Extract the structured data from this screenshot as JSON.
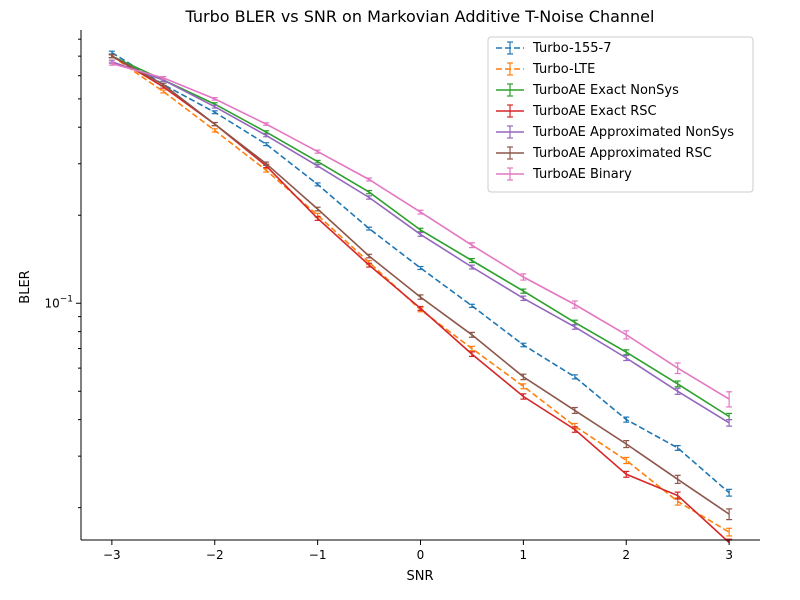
{
  "chart_data": {
    "type": "line",
    "title": "Turbo BLER vs SNR on Markovian Additive T-Noise Channel",
    "xlabel": "SNR",
    "ylabel": "BLER",
    "yscale": "log",
    "xlim": [
      -3.3,
      3.3
    ],
    "ylim": [
      0.0155,
      0.86
    ],
    "x_ticks": [
      -3,
      -2,
      -1,
      0,
      1,
      2,
      3
    ],
    "x_tick_labels": [
      "−3",
      "−2",
      "−1",
      "0",
      "1",
      "2",
      "3"
    ],
    "y_major_tick": 0.1,
    "y_major_tick_label_base": "10",
    "y_major_tick_label_exp": "−1",
    "legend_position": "top-right",
    "grid": false,
    "x": [
      -3,
      -2.5,
      -2,
      -1.5,
      -1,
      -0.5,
      0,
      0.5,
      1,
      1.5,
      2,
      2.5,
      3
    ],
    "series": [
      {
        "name": "Turbo-155-7",
        "color": "#1f77b4",
        "dashed": true,
        "values": [
          0.72,
          0.56,
          0.45,
          0.35,
          0.255,
          0.18,
          0.132,
          0.098,
          0.072,
          0.056,
          0.04,
          0.032,
          0.0225
        ],
        "errors": [
          0.008,
          0.006,
          0.005,
          0.004,
          0.003,
          0.002,
          0.0015,
          0.0012,
          0.001,
          0.0009,
          0.0008,
          0.0006,
          0.0006
        ]
      },
      {
        "name": "Turbo-LTE",
        "color": "#ff7f0e",
        "dashed": true,
        "values": [
          0.7,
          0.53,
          0.39,
          0.285,
          0.2,
          0.138,
          0.095,
          0.07,
          0.052,
          0.038,
          0.029,
          0.021,
          0.0165
        ],
        "errors": [
          0.008,
          0.006,
          0.005,
          0.004,
          0.003,
          0.002,
          0.0015,
          0.0012,
          0.001,
          0.0008,
          0.0007,
          0.0006,
          0.0005
        ]
      },
      {
        "name": "TurboAE Exact NonSys",
        "color": "#2ca02c",
        "dashed": false,
        "values": [
          0.7,
          0.58,
          0.48,
          0.385,
          0.305,
          0.24,
          0.178,
          0.14,
          0.11,
          0.086,
          0.068,
          0.053,
          0.041
        ],
        "errors": [
          0.008,
          0.006,
          0.005,
          0.004,
          0.003,
          0.003,
          0.0025,
          0.0022,
          0.0018,
          0.0015,
          0.0013,
          0.0012,
          0.001
        ]
      },
      {
        "name": "TurboAE Exact RSC",
        "color": "#d62728",
        "dashed": false,
        "values": [
          0.7,
          0.55,
          0.41,
          0.295,
          0.195,
          0.135,
          0.096,
          0.067,
          0.048,
          0.037,
          0.026,
          0.022,
          0.0152
        ],
        "errors": [
          0.008,
          0.006,
          0.005,
          0.004,
          0.003,
          0.002,
          0.0015,
          0.0012,
          0.001,
          0.0008,
          0.0006,
          0.0006,
          0.0004
        ]
      },
      {
        "name": "TurboAE Approximated NonSys",
        "color": "#9467bd",
        "dashed": false,
        "values": [
          0.67,
          0.58,
          0.47,
          0.375,
          0.295,
          0.23,
          0.172,
          0.133,
          0.104,
          0.083,
          0.065,
          0.05,
          0.039
        ],
        "errors": [
          0.008,
          0.006,
          0.005,
          0.004,
          0.003,
          0.003,
          0.0025,
          0.002,
          0.0018,
          0.0015,
          0.0013,
          0.0012,
          0.001
        ]
      },
      {
        "name": "TurboAE Approximated RSC",
        "color": "#8c564b",
        "dashed": false,
        "values": [
          0.7,
          0.56,
          0.41,
          0.3,
          0.21,
          0.145,
          0.105,
          0.078,
          0.056,
          0.043,
          0.033,
          0.025,
          0.019
        ],
        "errors": [
          0.008,
          0.006,
          0.005,
          0.004,
          0.003,
          0.002,
          0.0018,
          0.0015,
          0.0012,
          0.001,
          0.0009,
          0.0008,
          0.0008
        ]
      },
      {
        "name": "TurboAE Binary",
        "color": "#e377c2",
        "dashed": false,
        "values": [
          0.66,
          0.59,
          0.5,
          0.41,
          0.33,
          0.265,
          0.205,
          0.158,
          0.123,
          0.099,
          0.078,
          0.06,
          0.047
        ],
        "errors": [
          0.008,
          0.006,
          0.005,
          0.004,
          0.004,
          0.003,
          0.003,
          0.003,
          0.003,
          0.0028,
          0.0025,
          0.0025,
          0.0028
        ]
      }
    ]
  }
}
